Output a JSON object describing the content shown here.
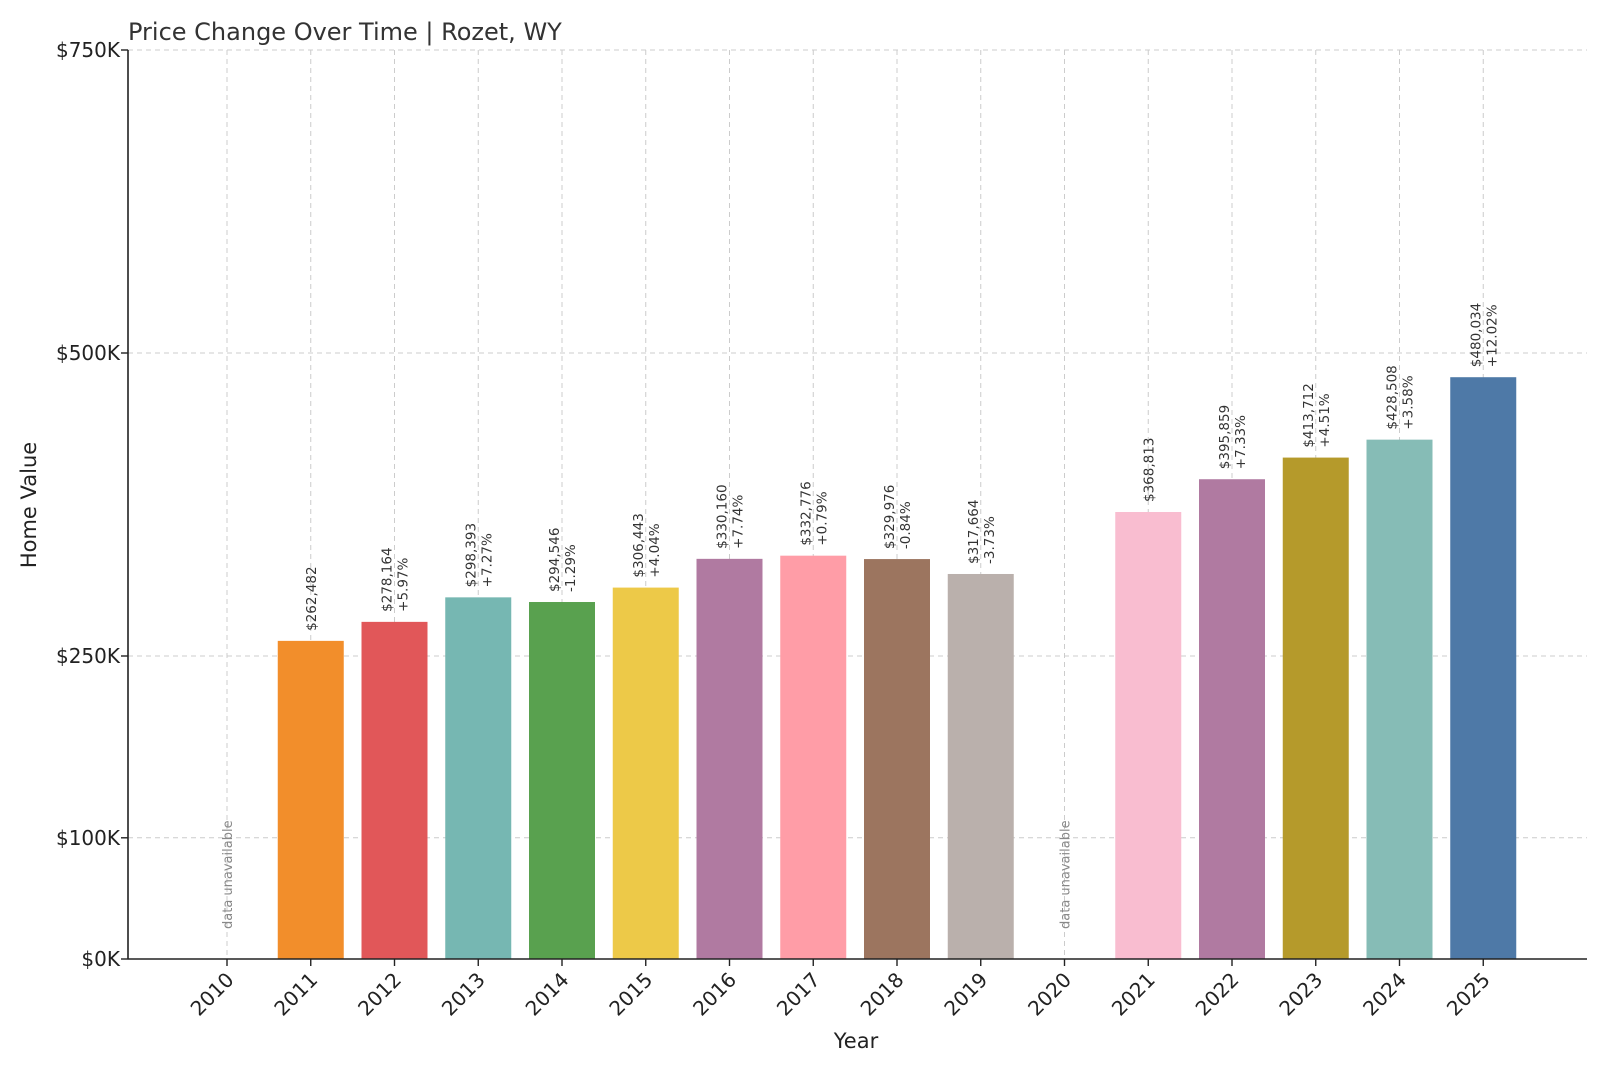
{
  "chart_data": {
    "type": "bar",
    "title": "Price Change Over Time | Rozet, WY",
    "xlabel": "Year",
    "ylabel": "Home Value",
    "categories": [
      "2010",
      "2011",
      "2012",
      "2013",
      "2014",
      "2015",
      "2016",
      "2017",
      "2018",
      "2019",
      "2020",
      "2021",
      "2022",
      "2023",
      "2024",
      "2025"
    ],
    "values": [
      null,
      262482,
      278164,
      298393,
      294546,
      306443,
      330160,
      332776,
      329976,
      317664,
      null,
      368813,
      395859,
      413712,
      428508,
      480034
    ],
    "value_labels": [
      null,
      "$262,482",
      "$278,164",
      "$298,393",
      "$294,546",
      "$306,443",
      "$330,160",
      "$332,776",
      "$329,976",
      "$317,664",
      null,
      "$368,813",
      "$395,859",
      "$413,712",
      "$428,508",
      "$480,034"
    ],
    "change_labels": [
      null,
      null,
      "+5.97%",
      "+7.27%",
      "-1.29%",
      "+4.04%",
      "+7.74%",
      "+0.79%",
      "-0.84%",
      "-3.73%",
      null,
      null,
      "+7.33%",
      "+4.51%",
      "+3.58%",
      "+12.02%"
    ],
    "missing_label": "data unavailable",
    "colors": [
      "#f28e2b",
      "#f28e2b",
      "#e15759",
      "#76b7b2",
      "#59a14f",
      "#edc948",
      "#b07aa1",
      "#ff9da7",
      "#9c755f",
      "#bab0ac",
      "#bab0ac",
      "#f9bdd0",
      "#b07aa1",
      "#b59a2b",
      "#86bcb6",
      "#4e79a7"
    ],
    "yticks": [
      0,
      100000,
      250000,
      500000,
      750000
    ],
    "ytick_labels": [
      "$0K",
      "$100K",
      "$250K",
      "$500K",
      "$750K"
    ],
    "ylim": [
      0,
      750000
    ],
    "grid": true
  }
}
